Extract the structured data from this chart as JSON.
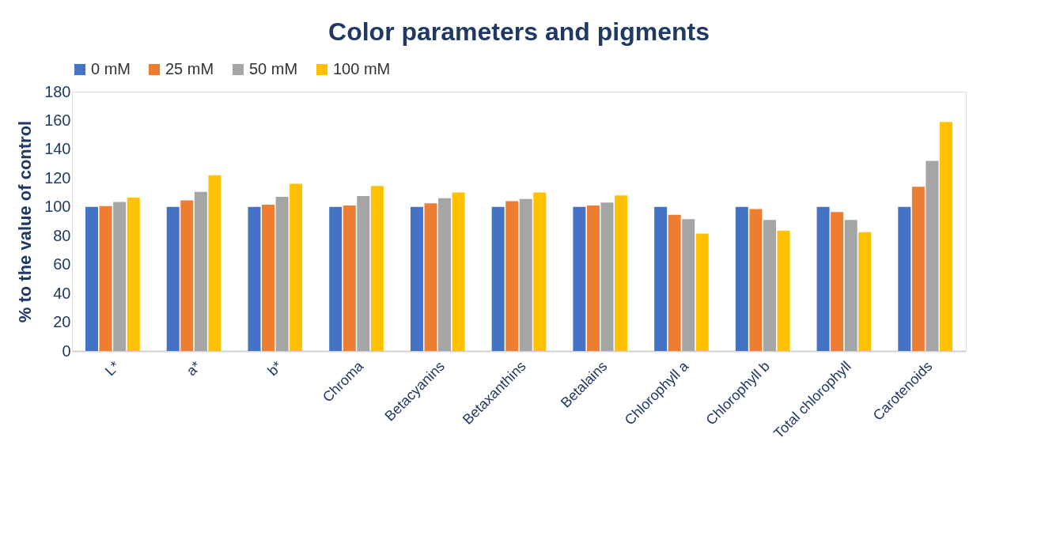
{
  "chart_data": {
    "type": "bar",
    "title": "Color parameters and pigments",
    "ylabel": "% to the value of control",
    "categories": [
      "L*",
      "a*",
      "b*",
      "Chroma",
      "Betacyanins",
      "Betaxanthins",
      "Betalains",
      "Chlorophyll a",
      "Chlorophyll b",
      "Total chlorophyll",
      "Carotenoids"
    ],
    "series": [
      {
        "name": "0 mM",
        "color": "#4472c4",
        "values": [
          100,
          100,
          100,
          100,
          100,
          100,
          100,
          100,
          100,
          100,
          100
        ]
      },
      {
        "name": "25 mM",
        "color": "#ed7d31",
        "values": [
          100.5,
          104.5,
          101.5,
          101,
          102.5,
          104,
          101,
          94.5,
          98.5,
          96.5,
          114
        ]
      },
      {
        "name": "50 mM",
        "color": "#a5a5a5",
        "values": [
          103.5,
          110.5,
          107,
          107.5,
          106,
          105.5,
          103,
          91.5,
          91,
          91,
          132
        ]
      },
      {
        "name": "100 mM",
        "color": "#ffc000",
        "values": [
          106.5,
          122,
          116,
          114.5,
          110,
          110,
          108,
          81.5,
          83.5,
          82.5,
          159
        ]
      }
    ],
    "ylim": [
      0,
      180
    ],
    "yticks": [
      0,
      20,
      40,
      60,
      80,
      100,
      120,
      140,
      160,
      180
    ],
    "grid": false,
    "legend": "top"
  }
}
